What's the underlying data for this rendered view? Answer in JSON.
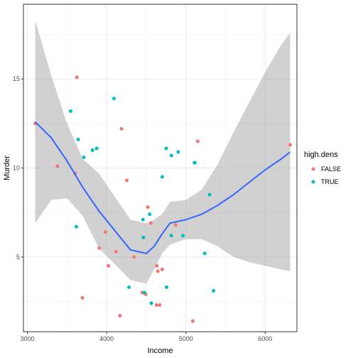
{
  "chart_data": {
    "type": "scatter",
    "xlabel": "Income",
    "ylabel": "Murder",
    "xlim": [
      2950,
      6400
    ],
    "ylim": [
      0.8,
      19.2
    ],
    "xticks": [
      3000,
      4000,
      5000,
      6000
    ],
    "yticks": [
      5,
      10,
      15
    ],
    "grid": true,
    "legend": {
      "title": "high.dens",
      "placement": "right",
      "entries": [
        {
          "label": "FALSE",
          "color": "#F8766D"
        },
        {
          "label": "TRUE",
          "color": "#00BFC4"
        }
      ]
    },
    "series": [
      {
        "name": "FALSE",
        "color": "#F8766D",
        "points": [
          [
            3098,
            12.5
          ],
          [
            3378,
            10.1
          ],
          [
            3601,
            9.7
          ],
          [
            3624,
            15.1
          ],
          [
            3694,
            2.7
          ],
          [
            3907,
            5.5
          ],
          [
            3983,
            6.4
          ],
          [
            4022,
            4.5
          ],
          [
            4119,
            5.3
          ],
          [
            4167,
            1.7
          ],
          [
            4188,
            12.2
          ],
          [
            4254,
            9.3
          ],
          [
            4345,
            5.0
          ],
          [
            4449,
            3.0
          ],
          [
            4468,
            3.0
          ],
          [
            4493,
            2.9
          ],
          [
            4519,
            7.8
          ],
          [
            4558,
            6.9
          ],
          [
            4628,
            2.3
          ],
          [
            4633,
            4.5
          ],
          [
            4645,
            4.2
          ],
          [
            4669,
            2.3
          ],
          [
            4700,
            4.3
          ],
          [
            4870,
            6.8
          ],
          [
            5087,
            1.4
          ],
          [
            5149,
            11.5
          ],
          [
            6315,
            11.3
          ]
        ]
      },
      {
        "name": "TRUE",
        "color": "#00BFC4",
        "points": [
          [
            3545,
            13.2
          ],
          [
            3617,
            6.7
          ],
          [
            3641,
            11.6
          ],
          [
            3712,
            10.6
          ],
          [
            3821,
            11.0
          ],
          [
            3875,
            11.1
          ],
          [
            4091,
            13.9
          ],
          [
            4281,
            3.3
          ],
          [
            4458,
            7.1
          ],
          [
            4464,
            6.1
          ],
          [
            4476,
            3.0
          ],
          [
            4543,
            7.4
          ],
          [
            4564,
            2.4
          ],
          [
            4701,
            9.5
          ],
          [
            4751,
            11.1
          ],
          [
            4755,
            3.3
          ],
          [
            4815,
            6.2
          ],
          [
            4817,
            10.7
          ],
          [
            4903,
            10.9
          ],
          [
            4963,
            6.2
          ],
          [
            5107,
            10.3
          ],
          [
            5114,
            10.3
          ],
          [
            5237,
            5.2
          ],
          [
            5299,
            8.5
          ],
          [
            5348,
            3.1
          ]
        ]
      }
    ],
    "smooth": {
      "color": "#3366FF",
      "band_color": "#999999",
      "x": [
        3098,
        3300,
        3500,
        3700,
        3900,
        4100,
        4300,
        4500,
        4600,
        4700,
        4800,
        5000,
        5200,
        5400,
        5600,
        5800,
        6000,
        6200,
        6315
      ],
      "y": [
        12.6,
        11.7,
        10.4,
        8.9,
        7.6,
        6.5,
        5.4,
        5.2,
        5.6,
        6.3,
        6.9,
        7.1,
        7.4,
        7.9,
        8.5,
        9.2,
        9.9,
        10.5,
        10.9
      ],
      "lower": [
        6.9,
        8.2,
        8.3,
        7.3,
        5.5,
        4.6,
        3.7,
        3.5,
        4.3,
        5.2,
        5.7,
        6.0,
        6.0,
        5.6,
        5.0,
        4.7,
        4.5,
        4.3,
        4.2
      ],
      "upper": [
        18.3,
        15.2,
        12.5,
        10.5,
        9.7,
        8.4,
        7.1,
        6.9,
        7.1,
        7.4,
        8.1,
        8.2,
        8.8,
        10.2,
        12.0,
        13.7,
        15.4,
        16.9,
        17.6
      ]
    }
  }
}
